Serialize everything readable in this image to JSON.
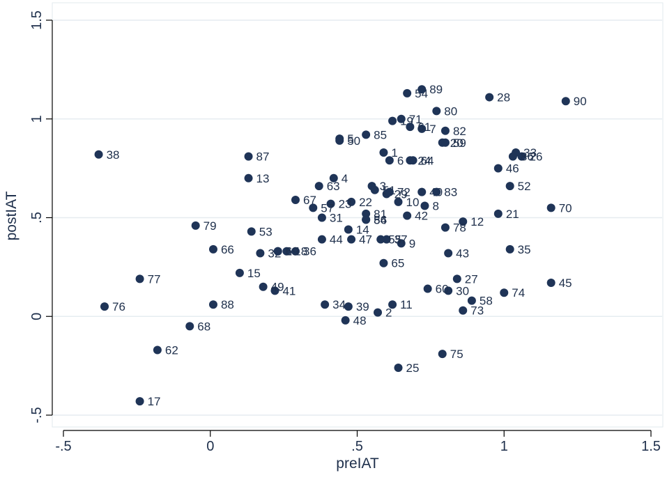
{
  "chart_data": {
    "type": "scatter",
    "xlabel": "preIAT",
    "ylabel": "postIAT",
    "xlim": [
      -0.55,
      1.55
    ],
    "ylim": [
      -0.55,
      1.55
    ],
    "x_ticks": [
      -0.5,
      0,
      0.5,
      1,
      1.5
    ],
    "x_tick_labels": [
      "-.5",
      "0",
      ".5",
      "1",
      "1.5"
    ],
    "y_ticks": [
      -0.5,
      0,
      0.5,
      1,
      1.5
    ],
    "y_tick_labels": [
      "-.5",
      "0",
      ".5",
      "1",
      "1.5"
    ],
    "grid": "horizontal",
    "colors": {
      "marker": "#1f3457",
      "label": "#1e2f4b",
      "grid": "#e6ecf0",
      "axis": "#000000"
    },
    "points": [
      {
        "label": "1",
        "x": 0.59,
        "y": 0.83
      },
      {
        "label": "2",
        "x": 0.57,
        "y": 0.02
      },
      {
        "label": "3",
        "x": 0.55,
        "y": 0.66
      },
      {
        "label": "4",
        "x": 0.42,
        "y": 0.7
      },
      {
        "label": "5",
        "x": 0.44,
        "y": 0.9
      },
      {
        "label": "6",
        "x": 0.61,
        "y": 0.79
      },
      {
        "label": "7",
        "x": 0.72,
        "y": 0.95
      },
      {
        "label": "8",
        "x": 0.73,
        "y": 0.56
      },
      {
        "label": "9",
        "x": 0.65,
        "y": 0.37
      },
      {
        "label": "10",
        "x": 0.64,
        "y": 0.58
      },
      {
        "label": "11",
        "x": 0.62,
        "y": 0.06
      },
      {
        "label": "12",
        "x": 0.86,
        "y": 0.48
      },
      {
        "label": "13",
        "x": 0.13,
        "y": 0.7
      },
      {
        "label": "14",
        "x": 0.47,
        "y": 0.44
      },
      {
        "label": "15",
        "x": 0.1,
        "y": 0.22
      },
      {
        "label": "16",
        "x": 0.23,
        "y": 0.33
      },
      {
        "label": "17",
        "x": -0.24,
        "y": -0.43
      },
      {
        "label": "18",
        "x": 0.26,
        "y": 0.33
      },
      {
        "label": "19",
        "x": 0.62,
        "y": 0.99
      },
      {
        "label": "20",
        "x": 0.79,
        "y": 0.88
      },
      {
        "label": "21",
        "x": 0.98,
        "y": 0.52
      },
      {
        "label": "22",
        "x": 0.48,
        "y": 0.58
      },
      {
        "label": "23",
        "x": 0.41,
        "y": 0.57
      },
      {
        "label": "24",
        "x": 0.68,
        "y": 0.79
      },
      {
        "label": "25",
        "x": 0.64,
        "y": -0.26
      },
      {
        "label": "26",
        "x": 1.06,
        "y": 0.81
      },
      {
        "label": "27",
        "x": 0.84,
        "y": 0.19
      },
      {
        "label": "28",
        "x": 0.95,
        "y": 1.11
      },
      {
        "label": "29",
        "x": 0.6,
        "y": 0.62
      },
      {
        "label": "30",
        "x": 0.81,
        "y": 0.13
      },
      {
        "label": "31",
        "x": 0.38,
        "y": 0.5
      },
      {
        "label": "32",
        "x": 0.17,
        "y": 0.32
      },
      {
        "label": "33",
        "x": 1.04,
        "y": 0.83
      },
      {
        "label": "34",
        "x": 0.39,
        "y": 0.06
      },
      {
        "label": "35",
        "x": 1.02,
        "y": 0.34
      },
      {
        "label": "36",
        "x": 0.29,
        "y": 0.33
      },
      {
        "label": "37",
        "x": 0.6,
        "y": 0.39
      },
      {
        "label": "38",
        "x": -0.38,
        "y": 0.82
      },
      {
        "label": "39",
        "x": 0.47,
        "y": 0.05
      },
      {
        "label": "40",
        "x": 0.72,
        "y": 0.63
      },
      {
        "label": "41",
        "x": 0.22,
        "y": 0.13
      },
      {
        "label": "42",
        "x": 0.67,
        "y": 0.51
      },
      {
        "label": "43",
        "x": 0.81,
        "y": 0.32
      },
      {
        "label": "44",
        "x": 0.38,
        "y": 0.39
      },
      {
        "label": "45",
        "x": 1.16,
        "y": 0.17
      },
      {
        "label": "46",
        "x": 0.98,
        "y": 0.75
      },
      {
        "label": "47",
        "x": 0.48,
        "y": 0.39
      },
      {
        "label": "48",
        "x": 0.46,
        "y": -0.02
      },
      {
        "label": "49",
        "x": 0.18,
        "y": 0.15
      },
      {
        "label": "50",
        "x": 0.44,
        "y": 0.89
      },
      {
        "label": "51",
        "x": 0.56,
        "y": 0.64
      },
      {
        "label": "52",
        "x": 1.02,
        "y": 0.66
      },
      {
        "label": "53",
        "x": 0.14,
        "y": 0.43
      },
      {
        "label": "54",
        "x": 0.67,
        "y": 1.13
      },
      {
        "label": "55",
        "x": 0.58,
        "y": 0.39
      },
      {
        "label": "56",
        "x": 0.53,
        "y": 0.49
      },
      {
        "label": "57",
        "x": 0.35,
        "y": 0.55
      },
      {
        "label": "58",
        "x": 0.89,
        "y": 0.08
      },
      {
        "label": "59",
        "x": 0.8,
        "y": 0.88
      },
      {
        "label": "60",
        "x": 0.74,
        "y": 0.14
      },
      {
        "label": "61",
        "x": 0.68,
        "y": 0.96
      },
      {
        "label": "62",
        "x": -0.18,
        "y": -0.17
      },
      {
        "label": "63",
        "x": 0.37,
        "y": 0.66
      },
      {
        "label": "64",
        "x": 0.69,
        "y": 0.79
      },
      {
        "label": "65",
        "x": 0.59,
        "y": 0.27
      },
      {
        "label": "66",
        "x": 0.01,
        "y": 0.34
      },
      {
        "label": "67",
        "x": 0.29,
        "y": 0.59
      },
      {
        "label": "68",
        "x": -0.07,
        "y": -0.05
      },
      {
        "label": "69",
        "x": 0.23,
        "y": 0.33
      },
      {
        "label": "70",
        "x": 1.16,
        "y": 0.55
      },
      {
        "label": "71",
        "x": 0.65,
        "y": 1.0
      },
      {
        "label": "72",
        "x": 0.61,
        "y": 0.63
      },
      {
        "label": "73",
        "x": 0.86,
        "y": 0.03
      },
      {
        "label": "74",
        "x": 1.0,
        "y": 0.12
      },
      {
        "label": "75",
        "x": 0.79,
        "y": -0.19
      },
      {
        "label": "76",
        "x": -0.36,
        "y": 0.05
      },
      {
        "label": "77",
        "x": -0.24,
        "y": 0.19
      },
      {
        "label": "78",
        "x": 0.8,
        "y": 0.45
      },
      {
        "label": "79",
        "x": -0.05,
        "y": 0.46
      },
      {
        "label": "80",
        "x": 0.77,
        "y": 1.04
      },
      {
        "label": "81",
        "x": 0.53,
        "y": 0.52
      },
      {
        "label": "82",
        "x": 0.8,
        "y": 0.94
      },
      {
        "label": "83",
        "x": 0.77,
        "y": 0.63
      },
      {
        "label": "84",
        "x": 0.53,
        "y": 0.49
      },
      {
        "label": "85",
        "x": 0.53,
        "y": 0.92
      },
      {
        "label": "86",
        "x": 1.03,
        "y": 0.81
      },
      {
        "label": "87",
        "x": 0.13,
        "y": 0.81
      },
      {
        "label": "88",
        "x": 0.01,
        "y": 0.06
      },
      {
        "label": "89",
        "x": 0.72,
        "y": 1.15
      },
      {
        "label": "90",
        "x": 1.21,
        "y": 1.09
      }
    ]
  }
}
